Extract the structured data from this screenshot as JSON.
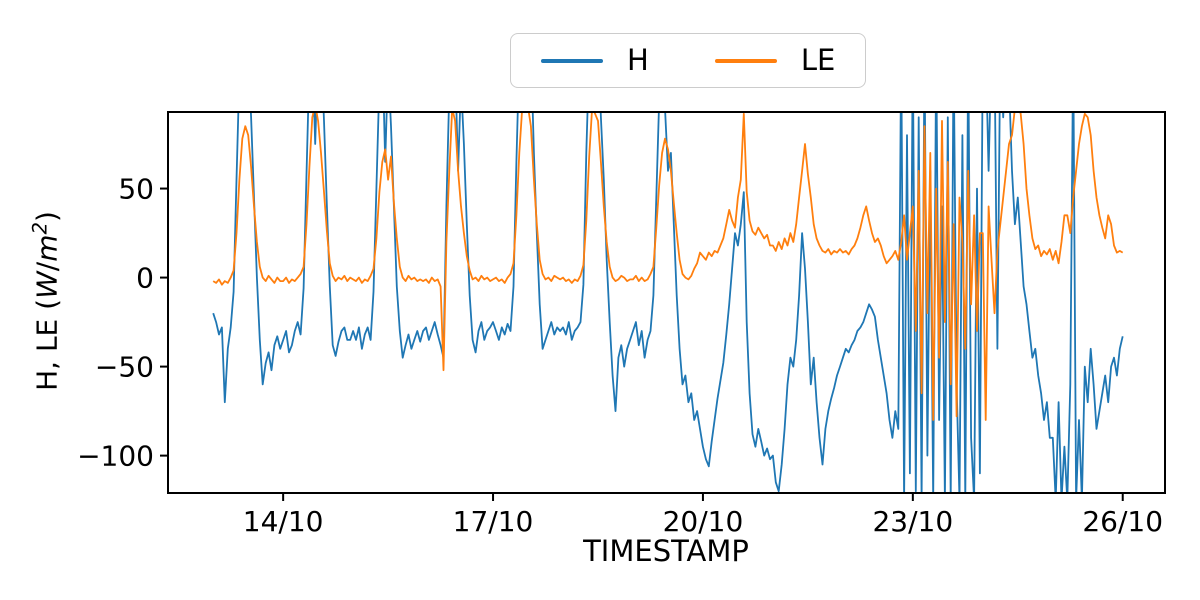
{
  "figure": {
    "background": "#ffffff"
  },
  "legend": {
    "items": [
      {
        "label": "H",
        "color": "#1f77b4"
      },
      {
        "label": "LE",
        "color": "#ff7f0e"
      }
    ]
  },
  "axes": {
    "xlabel": "TIMESTAMP",
    "ylabel": {
      "prefix": "H, LE (",
      "w": "W",
      "slash": "/",
      "m": "m",
      "sup": "2",
      "suffix": ")"
    }
  },
  "chart_data": {
    "type": "line",
    "title": "",
    "xlabel": "TIMESTAMP",
    "ylabel": "H, LE (W/m2)",
    "grid": false,
    "legend_position": "upper center outside axes",
    "x_start_label": "13/10 00:00",
    "x_start_hour": 0,
    "step_hours": 1,
    "xlim_hours": [
      -15.5,
      326.5
    ],
    "ylim": [
      -121,
      93
    ],
    "x_ticks": [
      {
        "label": "14/10",
        "hours": 24
      },
      {
        "label": "17/10",
        "hours": 96
      },
      {
        "label": "20/10",
        "hours": 168
      },
      {
        "label": "23/10",
        "hours": 240
      },
      {
        "label": "26/10",
        "hours": 312
      }
    ],
    "y_ticks": [
      {
        "label": "50",
        "value": 50
      },
      {
        "label": "0",
        "value": 0
      },
      {
        "label": "−50",
        "value": -50
      },
      {
        "label": "−100",
        "value": -100
      }
    ],
    "series": [
      {
        "name": "H",
        "color": "#1f77b4",
        "values": [
          -20,
          -25,
          -32,
          -28,
          -70,
          -40,
          -28,
          -8,
          55,
          115,
          130,
          105,
          125,
          90,
          45,
          0,
          -35,
          -60,
          -48,
          -42,
          -52,
          -38,
          -33,
          -40,
          -35,
          -30,
          -42,
          -38,
          -30,
          -25,
          -32,
          -6,
          58,
          120,
          130,
          75,
          128,
          130,
          88,
          40,
          -5,
          -38,
          -44,
          -36,
          -30,
          -28,
          -35,
          -35,
          -30,
          -35,
          -28,
          -40,
          -32,
          -28,
          -35,
          -8,
          50,
          110,
          130,
          65,
          120,
          85,
          40,
          -5,
          -30,
          -45,
          -38,
          -32,
          -40,
          -35,
          -30,
          -36,
          -30,
          -28,
          -35,
          -30,
          -25,
          -32,
          -38,
          -45,
          40,
          105,
          130,
          120,
          60,
          110,
          75,
          30,
          -10,
          -35,
          -42,
          -30,
          -25,
          -35,
          -30,
          -28,
          -25,
          -30,
          -35,
          -28,
          -32,
          -26,
          -30,
          -5,
          65,
          125,
          130,
          130,
          95,
          130,
          70,
          25,
          -15,
          -40,
          -35,
          -30,
          -25,
          -32,
          -28,
          -30,
          -28,
          -32,
          -25,
          -35,
          -30,
          -28,
          -25,
          -4,
          70,
          125,
          130,
          115,
          130,
          90,
          55,
          10,
          -25,
          -55,
          -75,
          -45,
          -38,
          -50,
          -40,
          -35,
          -30,
          -25,
          -38,
          -30,
          -45,
          -35,
          -30,
          -10,
          45,
          100,
          130,
          95,
          60,
          70,
          30,
          -10,
          -40,
          -60,
          -55,
          -70,
          -65,
          -80,
          -75,
          -85,
          -95,
          -102,
          -106,
          -92,
          -80,
          -68,
          -58,
          -48,
          -32,
          -15,
          5,
          25,
          18,
          30,
          48,
          -25,
          -65,
          -88,
          -95,
          -85,
          -92,
          -100,
          -96,
          -102,
          -100,
          -115,
          -120,
          -105,
          -85,
          -60,
          -45,
          -50,
          -35,
          -10,
          25,
          5,
          -25,
          -60,
          -45,
          -70,
          -90,
          -105,
          -85,
          -75,
          -68,
          -62,
          -55,
          -50,
          -45,
          -40,
          -42,
          -38,
          -35,
          -30,
          -28,
          -25,
          -20,
          -15,
          -18,
          -22,
          -35,
          -45,
          -55,
          -65,
          -80,
          -90,
          -75,
          -85,
          130,
          -125,
          80,
          -110,
          130,
          -120,
          90,
          -125,
          130,
          -100,
          60,
          -125,
          130,
          -80,
          40,
          -125,
          90,
          -125,
          130,
          -60,
          -125,
          80,
          -125,
          130,
          -90,
          -125,
          50,
          -110,
          130,
          130,
          60,
          130,
          130,
          -40,
          130,
          90,
          130,
          110,
          60,
          30,
          45,
          20,
          -5,
          -15,
          -30,
          -45,
          -40,
          -55,
          -65,
          -80,
          -70,
          -90,
          -90,
          -125,
          -70,
          -125,
          -95,
          -125,
          -60,
          130,
          -125,
          -80,
          -125,
          -50,
          -70,
          -40,
          -60,
          -85,
          -75,
          -65,
          -55,
          -70,
          -50,
          -45,
          -55,
          -40,
          -33
        ]
      },
      {
        "name": "LE",
        "color": "#ff7f0e",
        "values": [
          -2,
          -3,
          -1,
          -4,
          -2,
          -3,
          0,
          4,
          25,
          55,
          78,
          85,
          80,
          62,
          40,
          20,
          6,
          0,
          -2,
          1,
          -1,
          -3,
          0,
          -2,
          -2,
          0,
          -3,
          -1,
          -2,
          0,
          2,
          6,
          30,
          62,
          90,
          97,
          88,
          70,
          48,
          26,
          8,
          1,
          -2,
          0,
          -1,
          1,
          -2,
          0,
          -1,
          -2,
          0,
          -3,
          -1,
          -2,
          1,
          5,
          22,
          48,
          65,
          72,
          55,
          68,
          42,
          22,
          6,
          0,
          -2,
          1,
          -1,
          0,
          -2,
          -1,
          -2,
          -1,
          -3,
          0,
          -2,
          -1,
          -5,
          -52,
          20,
          60,
          95,
          88,
          60,
          40,
          25,
          12,
          4,
          -1,
          0,
          -2,
          1,
          -1,
          0,
          -2,
          -1,
          0,
          -2,
          -1,
          -3,
          0,
          2,
          8,
          35,
          70,
          95,
          97,
          96,
          85,
          55,
          30,
          10,
          2,
          -1,
          0,
          -2,
          1,
          0,
          -1,
          0,
          -2,
          -1,
          -3,
          -1,
          -2,
          1,
          7,
          32,
          68,
          96,
          92,
          88,
          65,
          40,
          20,
          6,
          0,
          -2,
          -1,
          1,
          0,
          -2,
          -1,
          -1,
          1,
          -2,
          0,
          -2,
          -1,
          2,
          6,
          28,
          52,
          70,
          78,
          72,
          60,
          42,
          25,
          10,
          2,
          0,
          -1,
          1,
          5,
          8,
          14,
          12,
          10,
          14,
          12,
          15,
          14,
          18,
          22,
          30,
          38,
          32,
          28,
          45,
          55,
          92,
          48,
          32,
          26,
          24,
          28,
          25,
          22,
          24,
          18,
          18,
          15,
          20,
          16,
          22,
          18,
          25,
          20,
          30,
          45,
          60,
          75,
          58,
          45,
          30,
          22,
          18,
          15,
          14,
          16,
          13,
          15,
          14,
          16,
          14,
          15,
          13,
          16,
          18,
          22,
          28,
          35,
          40,
          32,
          25,
          20,
          22,
          18,
          12,
          8,
          10,
          12,
          15,
          10,
          20,
          35,
          10,
          25,
          40,
          -30,
          60,
          -65,
          85,
          -20,
          70,
          -80,
          50,
          -45,
          88,
          -25,
          65,
          -60,
          30,
          -78,
          45,
          20,
          -40,
          60,
          -15,
          35,
          -30,
          25,
          25,
          -80,
          40,
          10,
          -20,
          15,
          30,
          45,
          60,
          75,
          80,
          95,
          97,
          92,
          75,
          50,
          35,
          22,
          16,
          18,
          12,
          15,
          13,
          16,
          10,
          15,
          8,
          20,
          35,
          35,
          25,
          45,
          60,
          75,
          85,
          92,
          90,
          80,
          60,
          45,
          35,
          28,
          22,
          35,
          30,
          18,
          14,
          15,
          14
        ]
      }
    ]
  }
}
